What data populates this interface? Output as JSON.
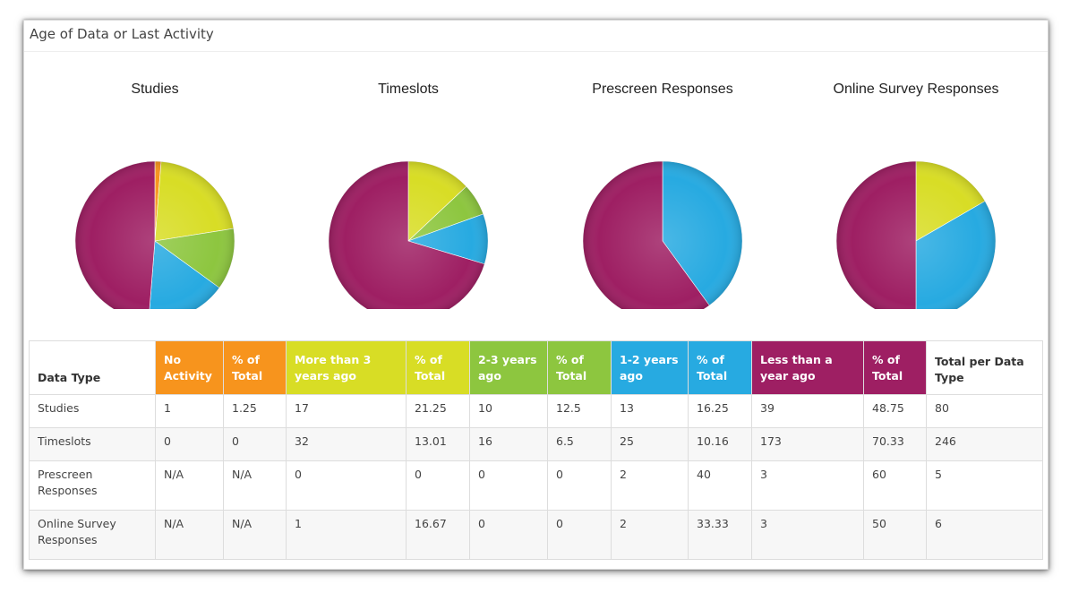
{
  "panel": {
    "title": "Age of Data or Last Activity"
  },
  "colors": {
    "no_activity": "#f7941d",
    "more_than_3": "#d8dd25",
    "two_three": "#8dc63f",
    "one_two": "#27aae1",
    "less_than_1": "#9e1f63"
  },
  "table": {
    "headers": {
      "data_type": "Data Type",
      "no_activity": "No Activity",
      "pct1": "% of Total",
      "more_than_3": "More than 3 years ago",
      "pct2": "% of Total",
      "two_three": "2-3 years ago",
      "pct3": "% of Total",
      "one_two": "1-2 years ago",
      "pct4": "% of Total",
      "less_than_1": "Less than a year ago",
      "pct5": "% of Total",
      "total": "Total per Data Type"
    },
    "rows": [
      [
        "Studies",
        "1",
        "1.25",
        "17",
        "21.25",
        "10",
        "12.5",
        "13",
        "16.25",
        "39",
        "48.75",
        "80"
      ],
      [
        "Timeslots",
        "0",
        "0",
        "32",
        "13.01",
        "16",
        "6.5",
        "25",
        "10.16",
        "173",
        "70.33",
        "246"
      ],
      [
        "Prescreen Responses",
        "N/A",
        "N/A",
        "0",
        "0",
        "0",
        "0",
        "2",
        "40",
        "3",
        "60",
        "5"
      ],
      [
        "Online Survey Responses",
        "N/A",
        "N/A",
        "1",
        "16.67",
        "0",
        "0",
        "2",
        "33.33",
        "3",
        "50",
        "6"
      ]
    ]
  },
  "chart_data": [
    {
      "type": "pie",
      "title": "Studies",
      "labels": [
        "No Activity",
        "More than 3 years ago",
        "2-3 years ago",
        "1-2 years ago",
        "Less than a year ago"
      ],
      "values": [
        1,
        17,
        10,
        13,
        39
      ]
    },
    {
      "type": "pie",
      "title": "Timeslots",
      "labels": [
        "No Activity",
        "More than 3 years ago",
        "2-3 years ago",
        "1-2 years ago",
        "Less than a year ago"
      ],
      "values": [
        0,
        32,
        16,
        25,
        173
      ]
    },
    {
      "type": "pie",
      "title": "Prescreen Responses",
      "labels": [
        "No Activity",
        "More than 3 years ago",
        "2-3 years ago",
        "1-2 years ago",
        "Less than a year ago"
      ],
      "values": [
        0,
        0,
        0,
        2,
        3
      ]
    },
    {
      "type": "pie",
      "title": "Online Survey Responses",
      "labels": [
        "No Activity",
        "More than 3 years ago",
        "2-3 years ago",
        "1-2 years ago",
        "Less than a year ago"
      ],
      "values": [
        0,
        1,
        0,
        2,
        3
      ]
    }
  ]
}
